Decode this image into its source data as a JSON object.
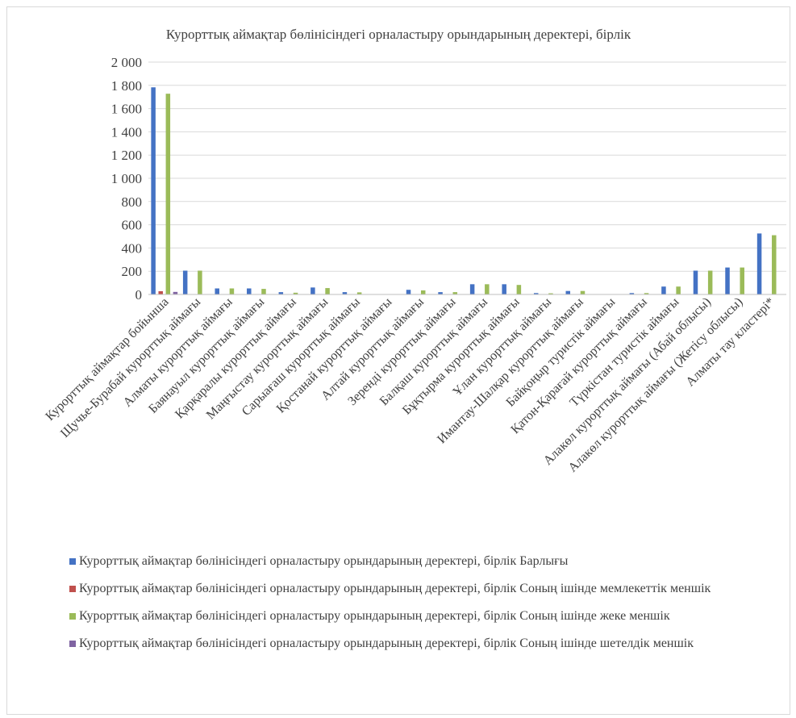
{
  "chart_data": {
    "type": "bar",
    "title": "Курорттық аймақтар бөлінісіндегі орналастыру орындарының деректері, бірлік",
    "xlabel": "",
    "ylabel": "",
    "ylim": [
      0,
      2000
    ],
    "yticks": [
      0,
      200,
      400,
      600,
      800,
      1000,
      1200,
      1400,
      1600,
      1800,
      2000
    ],
    "ytick_labels": [
      "0",
      "200",
      "400",
      "600",
      "800",
      "1 000",
      "1 200",
      "1 400",
      "1 600",
      "1 800",
      "2 000"
    ],
    "grid": true,
    "legend_position": "bottom",
    "categories": [
      "Курорттық аймақтар бойынша",
      "Щучье-Бурабай курорттық аймағы",
      "Алматы курорттық аймағы",
      "Баянауыл курорттық аймағы",
      "Қарқаралы курорттық аймағы",
      "Маңғыстау курорттық аймағы",
      "Сарыағаш курорттық аймағы",
      "Қостанай курорттық аймағы",
      "Алтай курорттық аймағы",
      "Зеренді курорттық аймағы",
      "Балқаш курорттық аймағы",
      "Бұқтырма курорттық аймағы",
      "Ұлан курорттық аймағы",
      "Имантау-Шалқар курорттық аймағы",
      "Байқоңыр туристік аймағы",
      "Қатон-Қарағай курорттық аймағы",
      "Түркістан туристік аймағы",
      "Алакөл курорттық аймағы (Абай облысы)",
      "Алакөл курорттық аймағы (Жетісу облысы)",
      "Алматы тау кластері*"
    ],
    "series": [
      {
        "name": "Курорттық аймақтар бөлінісіндегі орналастыру орындарының деректері, бірлік  Барлығы",
        "color": "#4472c4",
        "values": [
          1783,
          205,
          52,
          52,
          20,
          60,
          20,
          0,
          40,
          20,
          88,
          88,
          12,
          30,
          0,
          12,
          68,
          205,
          232,
          525
        ]
      },
      {
        "name": "Курорттық аймақтар бөлінісіндегі орналастыру орындарының деректері, бірлік  Соның ішінде мемлекеттік меншік",
        "color": "#c0504d",
        "values": [
          28,
          0,
          0,
          0,
          0,
          0,
          0,
          0,
          0,
          0,
          0,
          0,
          0,
          0,
          0,
          0,
          0,
          0,
          0,
          0
        ]
      },
      {
        "name": "Курорттық аймақтар бөлінісіндегі орналастыру орындарының деректері, бірлік  Соның ішінде жеке меншік",
        "color": "#9bbb59",
        "values": [
          1728,
          205,
          52,
          48,
          15,
          55,
          18,
          0,
          35,
          20,
          88,
          82,
          10,
          30,
          0,
          12,
          68,
          205,
          232,
          510
        ]
      },
      {
        "name": "Курорттық аймақтар бөлінісіндегі орналастыру орындарының деректері, бірлік  Соның ішінде шетелдік меншік",
        "color": "#8064a2",
        "values": [
          22,
          0,
          0,
          0,
          0,
          0,
          0,
          0,
          0,
          0,
          0,
          0,
          0,
          0,
          0,
          0,
          0,
          0,
          0,
          0
        ]
      }
    ]
  }
}
